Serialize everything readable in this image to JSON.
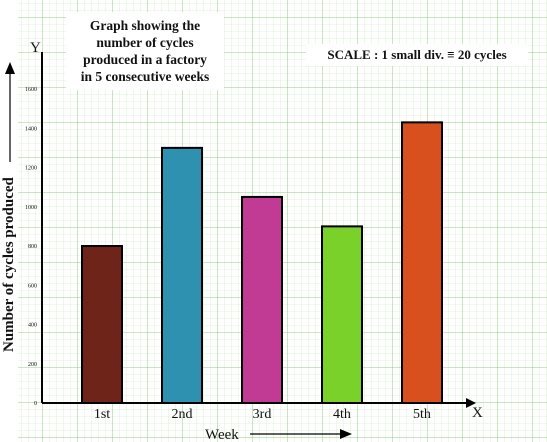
{
  "chart_data": {
    "type": "bar",
    "title_lines": [
      "Graph showing the",
      "number of cycles",
      "produced in a factory",
      "in 5 consecutive weeks"
    ],
    "scale_note": "SCALE : 1 small div. ≡ 20 cycles",
    "categories": [
      "1st",
      "2nd",
      "3rd",
      "4th",
      "5th"
    ],
    "values": [
      800,
      1300,
      1050,
      900,
      1430
    ],
    "bar_colors": [
      "#6e2419",
      "#2e91b0",
      "#c13a93",
      "#79d129",
      "#d9501f"
    ],
    "y_ticks": [
      "0",
      "200",
      "400",
      "600",
      "800",
      "1000",
      "1200",
      "1400",
      "1600"
    ],
    "ylim": [
      0,
      1600
    ],
    "xlabel": "Week",
    "ylabel": "Number of cycles produced",
    "x_axis_letter": "X",
    "y_axis_letter": "Y",
    "grid": true,
    "grid_color": "#9bd48f"
  }
}
